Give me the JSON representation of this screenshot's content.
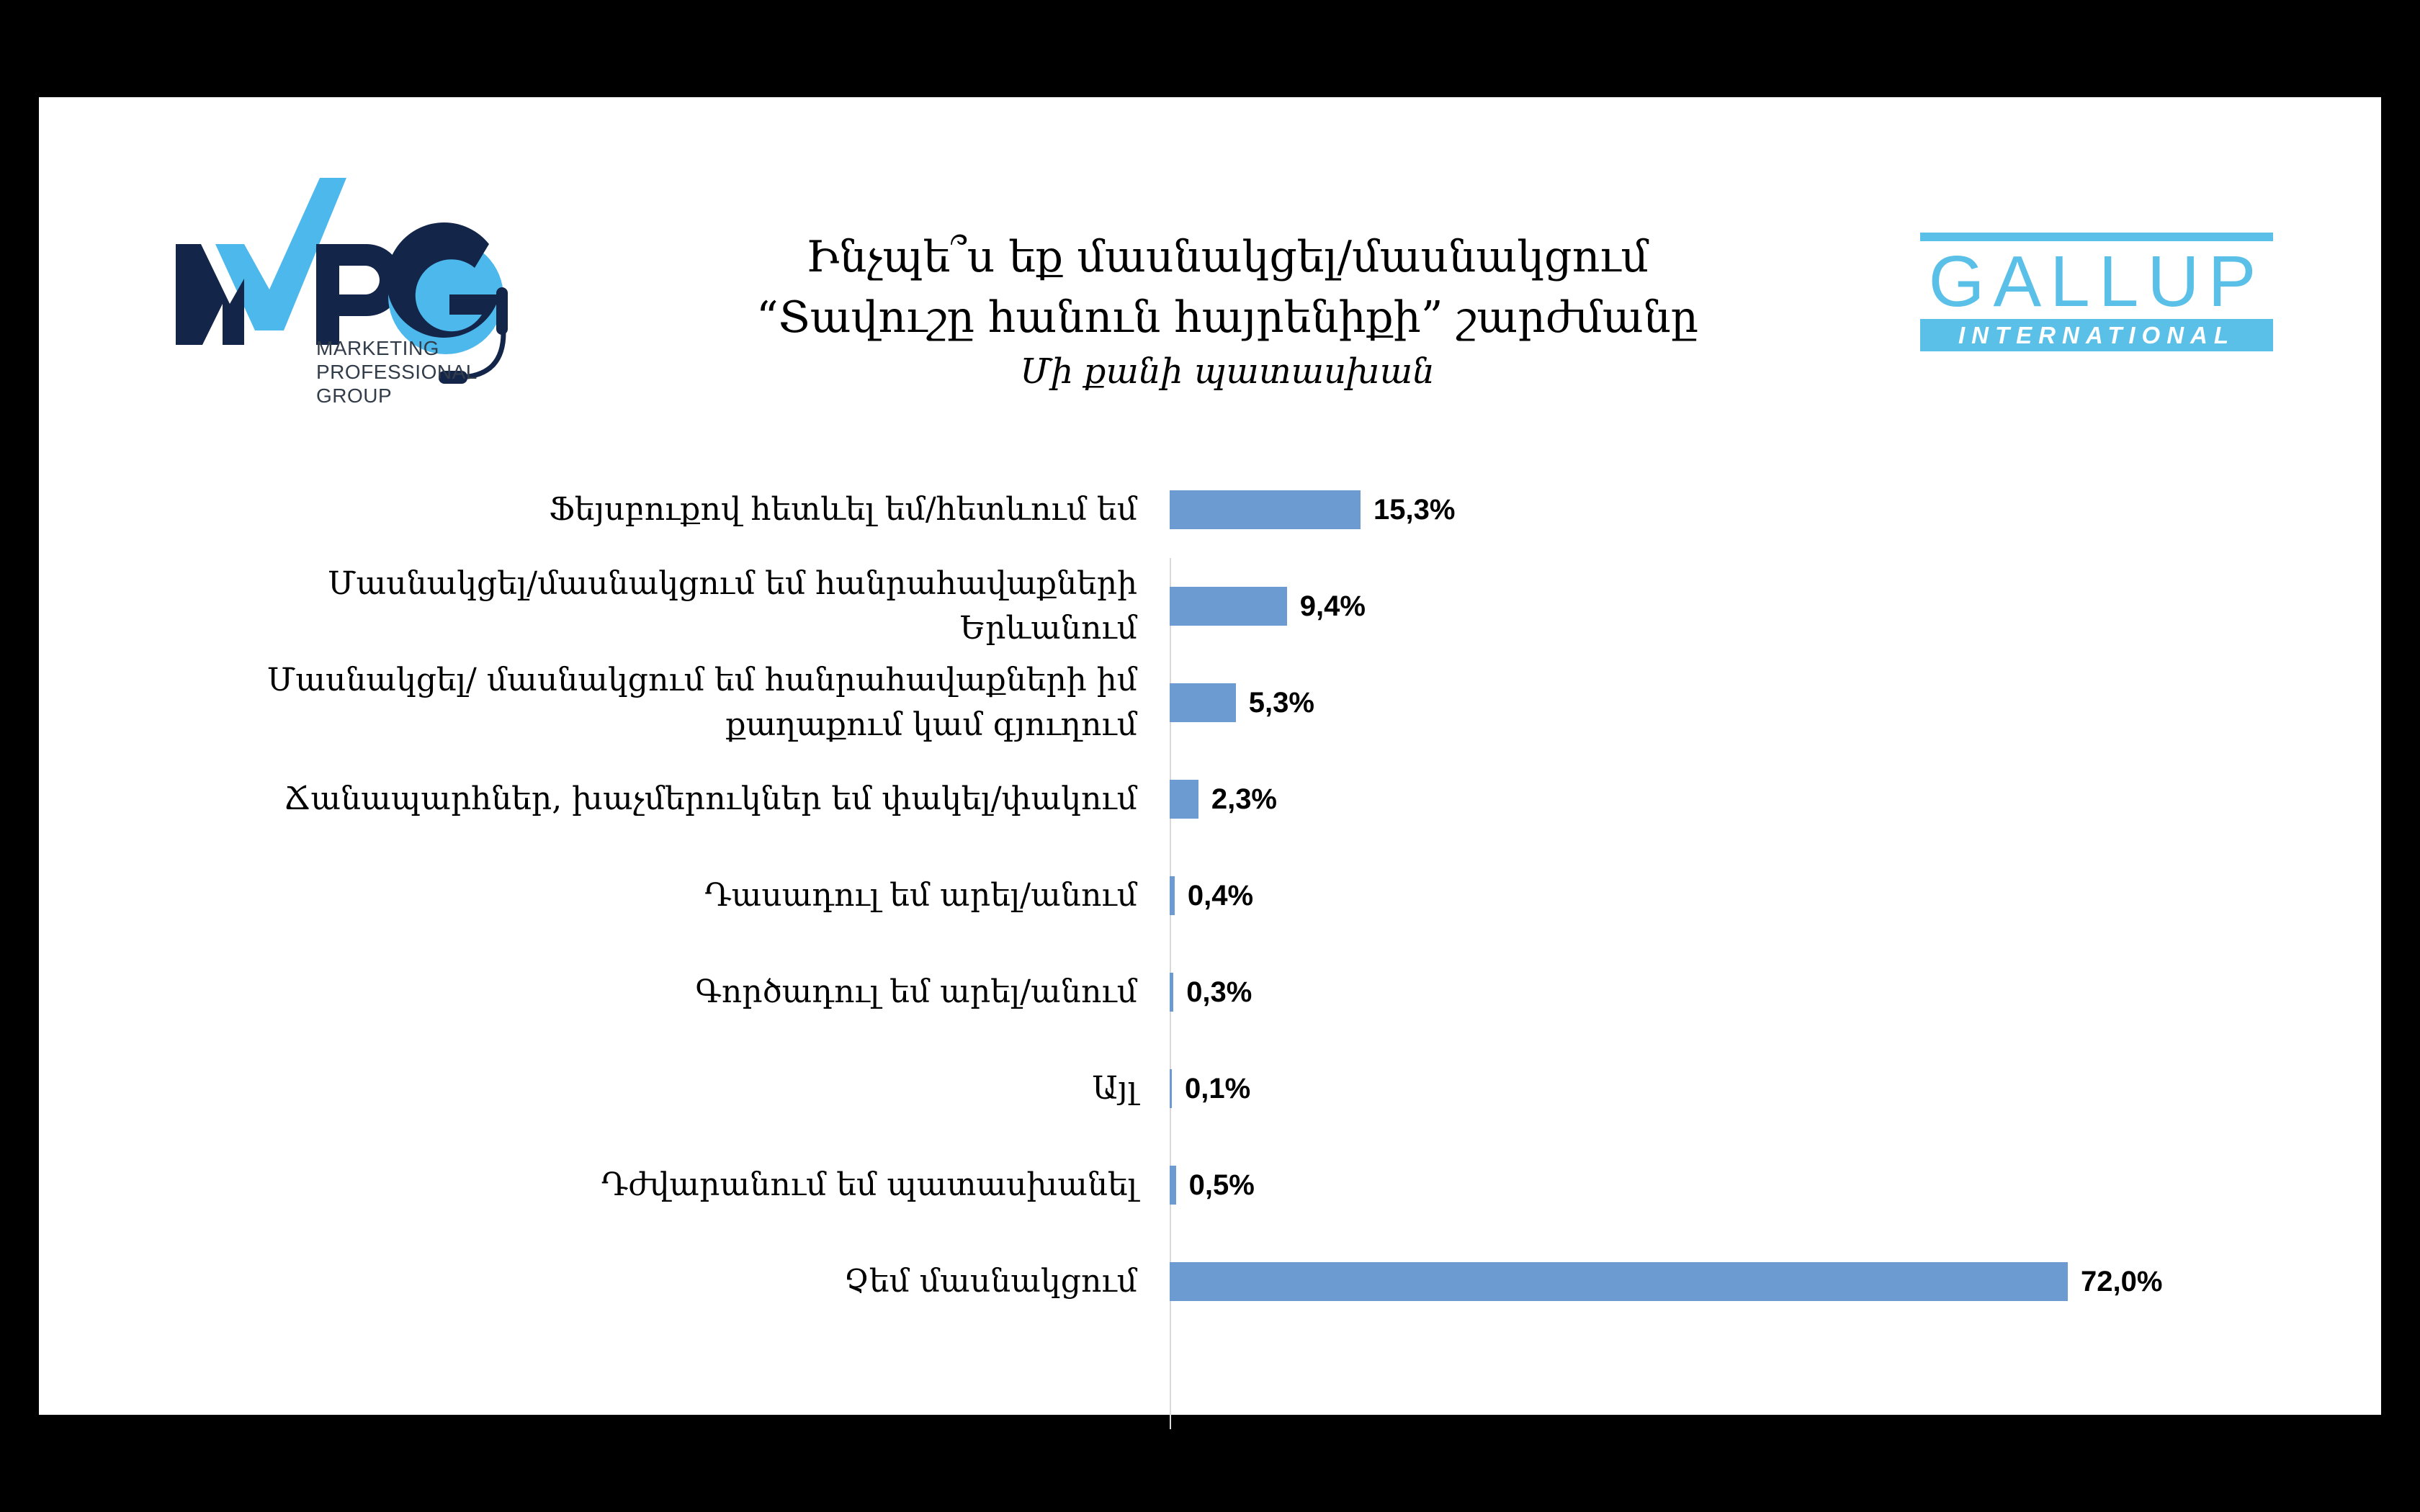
{
  "title": {
    "line1": "Ինչպե՞ս եք մասնակցել/մասնակցում",
    "line2": "“Տավուշը հանուն հայրենիքի” շարժմանը",
    "subtitle": "Մի քանի պատասխան"
  },
  "logos": {
    "mpg": {
      "letters": "MPG",
      "sub1": "MARKETING",
      "sub2": "PROFESSIONAL",
      "sub3": "GROUP",
      "colors": {
        "navy": "#13264a",
        "light_blue": "#4db8ec"
      }
    },
    "gallup": {
      "word": "GALLUP",
      "sub": "INTERNATIONAL",
      "color": "#5bc0e8"
    }
  },
  "chart_data": {
    "type": "bar",
    "orientation": "horizontal",
    "categories": [
      "Ֆեյսբուքով հետևել եմ/հետևում եմ",
      "Մասնակցել/մասնակցում եմ հանրահավաքների Երևանում",
      "Մասնակցել/ մասնակցում եմ հանրահավաքների իմ քաղաքում կամ գյուղում",
      "Ճանապարհներ, խաչմերուկներ եմ փակել/փակում",
      "Դասադուլ եմ արել/անում",
      "Գործադուլ եմ արել/անում",
      "Այլ",
      "Դժվարանում եմ պատասխանել",
      "Չեմ մասնակցում"
    ],
    "category_lines": [
      [
        "Ֆեյսբուքով հետևել եմ/հետևում եմ"
      ],
      [
        "Մասնակցել/մասնակցում եմ հանրահավաքների",
        "Երևանում"
      ],
      [
        "Մասնակցել/ մասնակցում եմ հանրահավաքների իմ",
        "քաղաքում կամ գյուղում"
      ],
      [
        "Ճանապարհներ, խաչմերուկներ եմ փակել/փակում"
      ],
      [
        "Դասադուլ եմ արել/անում"
      ],
      [
        "Գործադուլ եմ արել/անում"
      ],
      [
        "Այլ"
      ],
      [
        "Դժվարանում եմ պատասխանել"
      ],
      [
        "Չեմ մասնակցում"
      ]
    ],
    "values": [
      15.3,
      9.4,
      5.3,
      2.3,
      0.4,
      0.3,
      0.1,
      0.5,
      72.0
    ],
    "value_labels": [
      "15,3%",
      "9,4%",
      "5,3%",
      "2,3%",
      "0,4%",
      "0,3%",
      "0,1%",
      "0,5%",
      "72,0%"
    ],
    "bar_color": "#6b9bd1",
    "xlim": [
      0,
      100
    ],
    "grid": false,
    "legend": "none"
  }
}
